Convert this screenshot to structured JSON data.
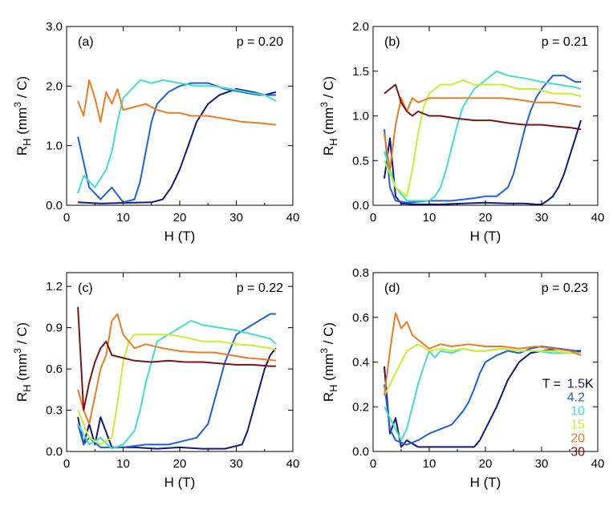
{
  "chart_data": [
    {
      "type": "line",
      "panel_label": "(a)",
      "annotation": "p = 0.20",
      "xlabel": "H (T)",
      "ylabel_main": "R",
      "ylabel_sub": "H",
      "ylabel_unit_pre": "(mm",
      "ylabel_unit_sup": "3",
      "ylabel_unit_post": " / C)",
      "xlim": [
        0,
        40
      ],
      "ylim": [
        0,
        3.0
      ],
      "xticks": [
        0,
        10,
        20,
        30,
        40
      ],
      "xtick_labels": [
        "0",
        "10",
        "20",
        "30",
        "40"
      ],
      "yticks": [
        0,
        1.0,
        2.0,
        3.0
      ],
      "ytick_labels": [
        "0.0",
        "1.0",
        "2.0",
        "3.0"
      ],
      "series": [
        {
          "name": "1.5 K",
          "color": "#101a7e",
          "x": [
            2,
            6,
            10,
            15,
            17,
            18.5,
            20,
            21.5,
            23,
            25,
            27,
            30,
            33,
            35,
            37
          ],
          "y": [
            0.05,
            0.03,
            0.04,
            0.05,
            0.1,
            0.3,
            0.6,
            1.0,
            1.4,
            1.7,
            1.85,
            1.95,
            1.9,
            1.85,
            1.9
          ]
        },
        {
          "name": "4.2 K",
          "color": "#1f5fe0",
          "x": [
            2,
            4,
            6,
            8,
            10,
            12,
            13,
            14,
            15,
            16,
            18,
            20,
            22,
            25,
            28,
            31,
            34,
            37
          ],
          "y": [
            1.15,
            0.3,
            0.1,
            0.3,
            0.05,
            0.1,
            0.4,
            0.9,
            1.4,
            1.7,
            1.9,
            2.0,
            2.05,
            2.05,
            1.95,
            1.9,
            1.85,
            1.85
          ]
        },
        {
          "name": "10 K",
          "color": "#40e0c8",
          "x": [
            2,
            3,
            5,
            7,
            8,
            9,
            10,
            11,
            12,
            13,
            15,
            17,
            20,
            23,
            26,
            29,
            32,
            35,
            37
          ],
          "y": [
            0.2,
            0.5,
            0.3,
            0.6,
            0.9,
            1.4,
            1.8,
            1.9,
            2.0,
            2.1,
            2.05,
            2.1,
            2.05,
            2.0,
            2.0,
            1.95,
            1.9,
            1.85,
            1.75
          ]
        },
        {
          "name": "20 K",
          "color": "#f07a20",
          "x": [
            2,
            3,
            4,
            5,
            6,
            7,
            8,
            9,
            10,
            12,
            14,
            16,
            18,
            20,
            22,
            25,
            28,
            31,
            34,
            37
          ],
          "y": [
            1.75,
            1.5,
            2.1,
            1.8,
            1.4,
            1.9,
            1.7,
            1.95,
            1.6,
            1.65,
            1.7,
            1.6,
            1.55,
            1.55,
            1.5,
            1.5,
            1.45,
            1.4,
            1.38,
            1.35
          ]
        }
      ]
    },
    {
      "type": "line",
      "panel_label": "(b)",
      "annotation": "p = 0.21",
      "xlabel": "H (T)",
      "ylabel_main": "R",
      "ylabel_sub": "H",
      "ylabel_unit_pre": "(mm",
      "ylabel_unit_sup": "3",
      "ylabel_unit_post": " / C)",
      "xlim": [
        0,
        40
      ],
      "ylim": [
        0,
        2.0
      ],
      "xticks": [
        0,
        10,
        20,
        30,
        40
      ],
      "xtick_labels": [
        "0",
        "10",
        "20",
        "30",
        "40"
      ],
      "yticks": [
        0,
        0.5,
        1.0,
        1.5,
        2.0
      ],
      "ytick_labels": [
        "0.0",
        "0.5",
        "1.0",
        "1.5",
        "2.0"
      ],
      "series": [
        {
          "name": "1.5 K",
          "color": "#101a7e",
          "x": [
            2,
            3,
            4,
            5,
            8,
            12,
            16,
            20,
            24,
            27,
            29,
            30,
            31,
            32,
            33,
            34,
            35,
            36,
            37
          ],
          "y": [
            0.3,
            0.75,
            0.1,
            0.02,
            0.01,
            0.01,
            0.02,
            0.03,
            0.02,
            0.02,
            0.01,
            0.01,
            0.05,
            0.1,
            0.2,
            0.35,
            0.55,
            0.75,
            0.95
          ]
        },
        {
          "name": "4.2 K",
          "color": "#1f5fe0",
          "x": [
            2,
            3,
            4,
            6,
            10,
            14,
            18,
            20,
            22,
            24,
            25,
            26,
            27,
            28,
            29,
            30,
            32,
            34,
            36,
            37
          ],
          "y": [
            0.85,
            0.2,
            0.05,
            0.03,
            0.05,
            0.05,
            0.08,
            0.1,
            0.1,
            0.2,
            0.35,
            0.6,
            0.85,
            1.05,
            1.2,
            1.3,
            1.45,
            1.45,
            1.38,
            1.38
          ]
        },
        {
          "name": "10 K",
          "color": "#40e0c8",
          "x": [
            2,
            4,
            6,
            8,
            10,
            11,
            12,
            13,
            14,
            15,
            16,
            18,
            20,
            22,
            24,
            27,
            30,
            33,
            36,
            37
          ],
          "y": [
            0.6,
            0.2,
            0.05,
            0.05,
            0.05,
            0.1,
            0.2,
            0.4,
            0.65,
            0.9,
            1.1,
            1.3,
            1.4,
            1.5,
            1.45,
            1.42,
            1.38,
            1.35,
            1.32,
            1.3
          ]
        },
        {
          "name": "15 K",
          "color": "#c8ee30",
          "x": [
            2,
            4,
            6,
            7,
            8,
            9,
            10,
            12,
            14,
            16,
            18,
            20,
            23,
            26,
            29,
            32,
            35,
            37
          ],
          "y": [
            0.5,
            0.2,
            0.1,
            0.4,
            0.8,
            1.1,
            1.25,
            1.35,
            1.35,
            1.4,
            1.35,
            1.35,
            1.35,
            1.3,
            1.3,
            1.25,
            1.25,
            1.22
          ]
        },
        {
          "name": "20 K",
          "color": "#f07a20",
          "x": [
            2,
            3,
            4,
            5,
            6,
            7,
            8,
            10,
            12,
            14,
            17,
            20,
            23,
            26,
            29,
            32,
            35,
            37
          ],
          "y": [
            0.8,
            0.4,
            0.9,
            1.2,
            1.05,
            1.2,
            1.15,
            1.2,
            1.2,
            1.2,
            1.2,
            1.2,
            1.2,
            1.18,
            1.15,
            1.15,
            1.12,
            1.1
          ]
        },
        {
          "name": "30 K",
          "color": "#7a1515",
          "x": [
            2,
            3,
            4,
            5,
            6,
            7,
            8,
            10,
            12,
            15,
            18,
            21,
            24,
            27,
            30,
            33,
            35,
            37
          ],
          "y": [
            1.25,
            1.3,
            1.35,
            1.15,
            1.05,
            1.0,
            1.05,
            1.0,
            1.0,
            0.97,
            0.95,
            0.95,
            0.92,
            0.9,
            0.9,
            0.88,
            0.87,
            0.85
          ]
        }
      ]
    },
    {
      "type": "line",
      "panel_label": "(c)",
      "annotation": "p = 0.22",
      "xlabel": "H (T)",
      "ylabel_main": "R",
      "ylabel_sub": "H",
      "ylabel_unit_pre": "(mm",
      "ylabel_unit_sup": "3",
      "ylabel_unit_post": " / C)",
      "xlim": [
        0,
        40
      ],
      "ylim": [
        0,
        1.3
      ],
      "xticks": [
        0,
        10,
        20,
        30,
        40
      ],
      "xtick_labels": [
        "0",
        "10",
        "20",
        "30",
        "40"
      ],
      "yticks": [
        0,
        0.3,
        0.6,
        0.9,
        1.2
      ],
      "ytick_labels": [
        "0.0",
        "0.3",
        "0.6",
        "0.9",
        "1.2"
      ],
      "series": [
        {
          "name": "1.5 K",
          "color": "#101a7e",
          "x": [
            2,
            3,
            4,
            5,
            6,
            8,
            12,
            16,
            20,
            24,
            28,
            31,
            32,
            33,
            34,
            35,
            36,
            37
          ],
          "y": [
            0.25,
            0.05,
            0.2,
            0.05,
            0.25,
            0.03,
            0.03,
            0.02,
            0.03,
            0.02,
            0.02,
            0.05,
            0.15,
            0.3,
            0.45,
            0.6,
            0.7,
            0.75
          ]
        },
        {
          "name": "4.2 K",
          "color": "#1f5fe0",
          "x": [
            2,
            3,
            4,
            6,
            10,
            14,
            18,
            21,
            23,
            25,
            26,
            27,
            28,
            29,
            30,
            32,
            34,
            36,
            37
          ],
          "y": [
            0.2,
            0.05,
            0.1,
            0.03,
            0.03,
            0.05,
            0.05,
            0.08,
            0.1,
            0.2,
            0.35,
            0.5,
            0.65,
            0.75,
            0.85,
            0.9,
            0.95,
            1.0,
            1.0
          ]
        },
        {
          "name": "10 K",
          "color": "#40e0c8",
          "x": [
            2,
            4,
            6,
            8,
            10,
            12,
            13,
            14,
            15,
            16,
            18,
            20,
            22,
            24,
            27,
            30,
            33,
            36,
            37
          ],
          "y": [
            0.2,
            0.05,
            0.1,
            0.02,
            0.05,
            0.15,
            0.3,
            0.5,
            0.65,
            0.8,
            0.85,
            0.9,
            0.95,
            0.92,
            0.9,
            0.88,
            0.85,
            0.82,
            0.78
          ]
        },
        {
          "name": "15 K",
          "color": "#c8ee30",
          "x": [
            2,
            4,
            6,
            8,
            9,
            10,
            11,
            12,
            14,
            16,
            18,
            21,
            24,
            27,
            30,
            33,
            36,
            37
          ],
          "y": [
            0.3,
            0.1,
            0.05,
            0.1,
            0.35,
            0.65,
            0.8,
            0.85,
            0.85,
            0.85,
            0.85,
            0.83,
            0.8,
            0.8,
            0.78,
            0.77,
            0.75,
            0.74
          ]
        },
        {
          "name": "20 K",
          "color": "#f07a20",
          "x": [
            2,
            3,
            4,
            5,
            6,
            7,
            8,
            9,
            10,
            12,
            14,
            17,
            20,
            23,
            26,
            29,
            32,
            35,
            37
          ],
          "y": [
            0.45,
            0.3,
            0.2,
            0.4,
            0.6,
            0.7,
            0.95,
            1.0,
            0.85,
            0.75,
            0.78,
            0.75,
            0.73,
            0.72,
            0.72,
            0.7,
            0.68,
            0.67,
            0.66
          ]
        },
        {
          "name": "30 K",
          "color": "#7a1515",
          "x": [
            2,
            3,
            4,
            5,
            6,
            7,
            8,
            10,
            12,
            15,
            18,
            21,
            24,
            27,
            30,
            33,
            36,
            37
          ],
          "y": [
            1.05,
            0.3,
            0.5,
            0.65,
            0.75,
            0.8,
            0.7,
            0.68,
            0.66,
            0.65,
            0.66,
            0.65,
            0.65,
            0.64,
            0.63,
            0.63,
            0.62,
            0.62
          ]
        }
      ]
    },
    {
      "type": "line",
      "panel_label": "(d)",
      "annotation": "p = 0.23",
      "xlabel": "H (T)",
      "ylabel_main": "R",
      "ylabel_sub": "H",
      "ylabel_unit_pre": "(mm",
      "ylabel_unit_sup": "3",
      "ylabel_unit_post": " / C)",
      "xlim": [
        0,
        40
      ],
      "ylim": [
        0,
        0.8
      ],
      "xticks": [
        0,
        10,
        20,
        30,
        40
      ],
      "xtick_labels": [
        "0",
        "10",
        "20",
        "30",
        "40"
      ],
      "yticks": [
        0,
        0.2,
        0.4,
        0.6,
        0.8
      ],
      "ytick_labels": [
        "0.0",
        "0.2",
        "0.4",
        "0.6",
        "0.8"
      ],
      "legend_title": "T = ",
      "legend_unit": " K",
      "legend_position": "right",
      "series": [
        {
          "name": "1.5",
          "color": "#101a7e",
          "x": [
            2,
            3,
            4,
            5,
            6,
            8,
            10,
            13,
            16,
            18,
            19,
            20,
            21,
            22,
            23,
            24,
            26,
            28,
            30,
            33,
            36,
            37
          ],
          "y": [
            0.38,
            0.08,
            0.15,
            0.02,
            0.05,
            0.02,
            0.02,
            0.02,
            0.02,
            0.02,
            0.05,
            0.1,
            0.15,
            0.2,
            0.26,
            0.32,
            0.4,
            0.44,
            0.45,
            0.46,
            0.45,
            0.45
          ]
        },
        {
          "name": "4.2",
          "color": "#1f5fe0",
          "x": [
            2,
            3,
            4,
            6,
            8,
            10,
            12,
            14,
            15,
            16,
            17,
            18,
            19,
            20,
            22,
            24,
            26,
            28,
            30,
            33,
            36,
            37
          ],
          "y": [
            0.3,
            0.1,
            0.05,
            0.03,
            0.05,
            0.08,
            0.1,
            0.12,
            0.15,
            0.18,
            0.22,
            0.28,
            0.35,
            0.4,
            0.43,
            0.45,
            0.44,
            0.46,
            0.47,
            0.46,
            0.45,
            0.44
          ]
        },
        {
          "name": "10",
          "color": "#40e0c8",
          "x": [
            2,
            4,
            5,
            6,
            7,
            8,
            9,
            10,
            11,
            12,
            14,
            16,
            18,
            20,
            23,
            26,
            29,
            32,
            35,
            37
          ],
          "y": [
            0.2,
            0.1,
            0.05,
            0.1,
            0.2,
            0.3,
            0.38,
            0.45,
            0.42,
            0.45,
            0.44,
            0.46,
            0.45,
            0.45,
            0.46,
            0.45,
            0.45,
            0.44,
            0.44,
            0.44
          ]
        },
        {
          "name": "15",
          "color": "#c8ee30",
          "x": [
            2,
            4,
            6,
            8,
            10,
            12,
            14,
            16,
            18,
            20,
            23,
            26,
            29,
            32,
            35,
            37
          ],
          "y": [
            0.25,
            0.35,
            0.45,
            0.48,
            0.45,
            0.46,
            0.45,
            0.46,
            0.45,
            0.45,
            0.46,
            0.45,
            0.45,
            0.45,
            0.44,
            0.44
          ]
        },
        {
          "name": "20",
          "color": "#f07a20",
          "x": [
            2,
            3,
            4,
            5,
            6,
            7,
            8,
            9,
            10,
            12,
            14,
            17,
            20,
            23,
            26,
            29,
            32,
            35,
            37
          ],
          "y": [
            0.25,
            0.45,
            0.62,
            0.55,
            0.58,
            0.52,
            0.5,
            0.48,
            0.46,
            0.48,
            0.47,
            0.48,
            0.47,
            0.47,
            0.46,
            0.47,
            0.46,
            0.45,
            0.43
          ]
        },
        {
          "name": "30",
          "color": "#7a1515",
          "x": [],
          "y": []
        }
      ]
    }
  ]
}
